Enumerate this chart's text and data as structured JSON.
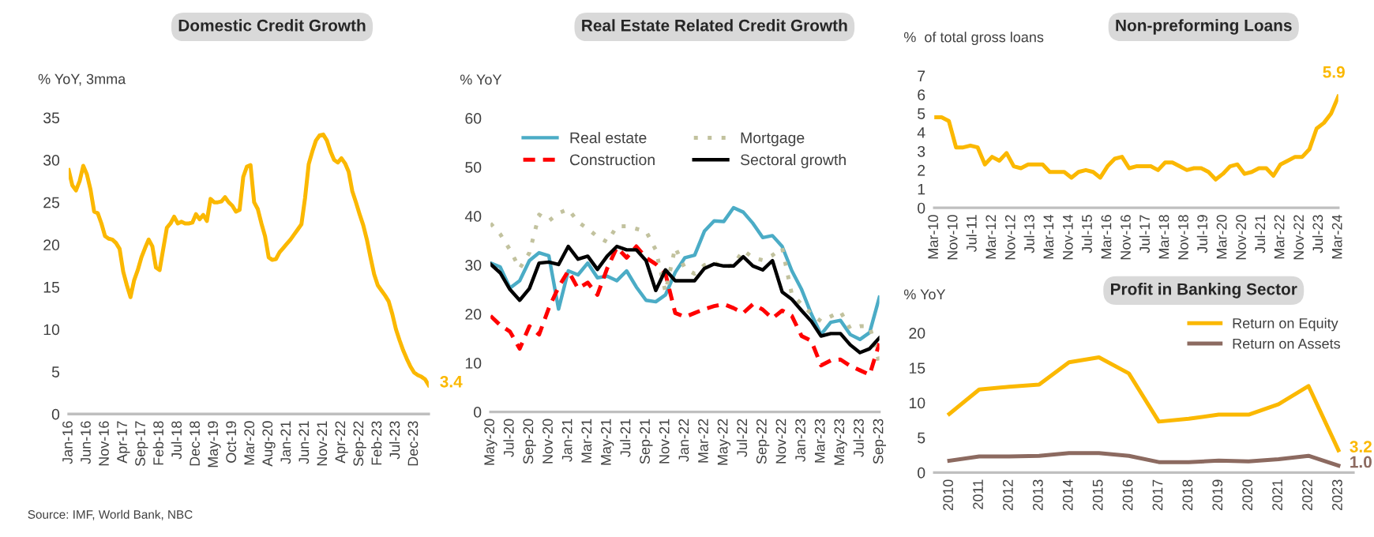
{
  "chart_data": [
    {
      "type": "line",
      "title": "Domestic Credit Growth",
      "ylabel": "% YoY, 3mma",
      "annotations": [
        "Source: IMF, World Bank, NBC"
      ],
      "categories": [
        "Jan-16",
        null,
        null,
        null,
        null,
        "Jun-16",
        null,
        null,
        null,
        null,
        "Nov-16",
        null,
        null,
        null,
        null,
        "Apr-17",
        null,
        null,
        null,
        null,
        "Sep-17",
        null,
        null,
        null,
        null,
        "Feb-18",
        null,
        null,
        null,
        null,
        "Jul-18",
        null,
        null,
        null,
        null,
        "Dec-18",
        null,
        null,
        null,
        null,
        "May-19",
        null,
        null,
        null,
        null,
        "Oct-19",
        null,
        null,
        null,
        null,
        "Mar-20",
        null,
        null,
        null,
        null,
        "Aug-20",
        null,
        null,
        null,
        null,
        "Jan-21",
        null,
        null,
        null,
        null,
        "Jun-21",
        null,
        null,
        null,
        null,
        "Nov-21",
        null,
        null,
        null,
        null,
        "Apr-22",
        null,
        null,
        null,
        null,
        "Sep-22",
        null,
        null,
        null,
        null,
        "Feb-23",
        null,
        null,
        null,
        null,
        "Jul-23",
        null,
        null,
        null,
        null,
        "Dec-23",
        null,
        null,
        null,
        null
      ],
      "series": [
        {
          "color": "#fbb800",
          "values": [
            28.8,
            27,
            26.4,
            27.5,
            29.3,
            28.3,
            26.5,
            23.9,
            23.7,
            22.5,
            21.0,
            20.7,
            20.6,
            20.2,
            19.5,
            16.8,
            15.2,
            13.8,
            15.8,
            17,
            18.5,
            19.6,
            20.6,
            19.8,
            17.3,
            17,
            19.5,
            22,
            22.5,
            23.3,
            22.5,
            22.7,
            22.5,
            22.5,
            22.6,
            23.6,
            23,
            23.5,
            22.8,
            25.4,
            25,
            25,
            25.1,
            25.6,
            25,
            24.6,
            23.9,
            24.1,
            28,
            29.2,
            29.4,
            25,
            24.2,
            22.5,
            21,
            18.5,
            18.2,
            18.3,
            19.1,
            19.6,
            20.1,
            20.6,
            21.2,
            21.8,
            22.4,
            25.5,
            29.5,
            31,
            32.3,
            32.9,
            33,
            32.3,
            31,
            30,
            29.7,
            30.2,
            29.6,
            28.6,
            26.3,
            25,
            23.6,
            22.3,
            20.6,
            18.5,
            16.5,
            15.2,
            14.6,
            14,
            13.3,
            11.8,
            10,
            8.7,
            7.5,
            6.5,
            5.6,
            4.9,
            4.6,
            4.4,
            4.1,
            3.4
          ],
          "value_labels": [
            null,
            null,
            null,
            null,
            null,
            null,
            null,
            null,
            null,
            null,
            null,
            null,
            null,
            null,
            null,
            null,
            null,
            null,
            null,
            null,
            null,
            null,
            null,
            null,
            null,
            null,
            null,
            null,
            null,
            null,
            null,
            null,
            null,
            null,
            null,
            null,
            null,
            null,
            null,
            null,
            null,
            null,
            null,
            null,
            null,
            null,
            null,
            null,
            null,
            null,
            null,
            null,
            null,
            null,
            null,
            null,
            null,
            null,
            null,
            null,
            null,
            null,
            null,
            null,
            null,
            null,
            null,
            null,
            null,
            null,
            null,
            null,
            null,
            null,
            null,
            null,
            null,
            null,
            null,
            null,
            null,
            null,
            null,
            null,
            null,
            null,
            null,
            null,
            null,
            null,
            null,
            null,
            null,
            null,
            null,
            null,
            null,
            null,
            null,
            "3.4"
          ]
        }
      ],
      "ylim": [
        0,
        35
      ],
      "yticks": [
        0,
        5,
        10,
        15,
        20,
        25,
        30,
        35
      ],
      "grid": false,
      "legend": false
    },
    {
      "type": "line",
      "title": "Real Estate Related Credit Growth",
      "ylabel": "% YoY",
      "categories": [
        "May-20",
        null,
        "Jul-20",
        null,
        "Sep-20",
        null,
        "Nov-20",
        null,
        "Jan-21",
        null,
        "Mar-21",
        null,
        "May-21",
        null,
        "Jul-21",
        null,
        "Sep-21",
        null,
        "Nov-21",
        null,
        "Jan-22",
        null,
        "Mar-22",
        null,
        "May-22",
        null,
        "Jul-22",
        null,
        "Sep-22",
        null,
        "Nov-22",
        null,
        "Jan-23",
        null,
        "Mar-23",
        null,
        "May-23",
        null,
        "Jul-23",
        null,
        "Sep-23"
      ],
      "series": [
        {
          "name": "Real estate",
          "color": "#4bacc6",
          "line_style": "solid",
          "values": [
            30.4,
            29.6,
            25.3,
            26.8,
            30.9,
            32.5,
            31.9,
            21,
            28.8,
            28,
            30.4,
            27.4,
            27.7,
            26.8,
            28.8,
            25.5,
            22.8,
            22.5,
            23.9,
            28.5,
            31.5,
            32,
            36.9,
            39,
            38.9,
            41.7,
            40.8,
            38.5,
            35.6,
            36,
            33.8,
            28.8,
            25,
            20,
            15.8,
            18.3,
            18.7,
            15.8,
            14.8,
            16.2,
            23.4
          ]
        },
        {
          "name": "Construction",
          "color": "#ff0000",
          "line_style": "dashed",
          "values": [
            19.6,
            17.7,
            16.4,
            12.9,
            17.5,
            15.8,
            21.2,
            25.5,
            28.8,
            25.2,
            26.4,
            23.9,
            29.3,
            33.6,
            31.5,
            33.8,
            31.5,
            30.2,
            28.2,
            20.2,
            19.4,
            20.2,
            21,
            21.6,
            22,
            21.2,
            20.2,
            22,
            20.9,
            19.1,
            20.7,
            19.6,
            15.5,
            14.5,
            9.5,
            10.5,
            10.7,
            9.4,
            8.5,
            7.6,
            14
          ]
        },
        {
          "name": "Mortgage",
          "color": "#c2c29e",
          "line_style": "dotted",
          "values": [
            38.5,
            36.3,
            33.1,
            29.3,
            32.5,
            40.3,
            39,
            40.6,
            41.4,
            38.8,
            37.4,
            35.8,
            34.7,
            37.9,
            37.9,
            37.4,
            36.9,
            33.1,
            24.5,
            33.6,
            29.3,
            28.2,
            30,
            30.5,
            29.5,
            30,
            33,
            31.5,
            31,
            32,
            33.5,
            24,
            22,
            20,
            18.5,
            19.5,
            20.5,
            17,
            17.5,
            17.5,
            10
          ]
        },
        {
          "name": "Sectoral growth",
          "color": "#000000",
          "line_style": "solid",
          "values": [
            30.2,
            28.4,
            25,
            22.8,
            25.2,
            30.4,
            30.6,
            30.1,
            33.8,
            31.2,
            31.8,
            29.1,
            31.8,
            33.8,
            33.1,
            33.1,
            30.9,
            24.8,
            29,
            26.8,
            26.8,
            26.8,
            29.3,
            30.2,
            29.8,
            29.8,
            31.7,
            29.8,
            29,
            30.9,
            24.5,
            23,
            20.7,
            18.5,
            15.5,
            16,
            16,
            13.7,
            12.1,
            12.9,
            15.1
          ]
        }
      ],
      "ylim": [
        0,
        60
      ],
      "yticks": [
        0,
        10,
        20,
        30,
        40,
        50,
        60
      ],
      "grid": false,
      "legend": "top"
    },
    {
      "type": "line",
      "title": "Non-preforming Loans",
      "ylabel": "%  of total gross loans",
      "x": [
        "2010-03",
        "2010-06",
        "2010-09",
        "2010-12",
        "2011-03",
        "2011-06",
        "2011-09",
        "2011-12",
        "2012-03",
        "2012-06",
        "2012-09",
        "2012-12",
        "2013-03",
        "2013-06",
        "2013-09",
        "2013-12",
        "2014-03",
        "2014-06",
        "2014-09",
        "2014-12",
        "2015-03",
        "2015-06",
        "2015-09",
        "2015-12",
        "2016-03",
        "2016-06",
        "2016-09",
        "2016-12",
        "2017-03",
        "2017-06",
        "2017-09",
        "2017-12",
        "2018-03",
        "2018-06",
        "2018-09",
        "2018-12",
        "2019-03",
        "2019-06",
        "2019-09",
        "2019-12",
        "2020-03",
        "2020-06",
        "2020-09",
        "2020-12",
        "2021-03",
        "2021-06",
        "2021-09",
        "2021-12",
        "2022-03",
        "2022-06",
        "2022-09",
        "2022-12",
        "2023-03",
        "2023-06",
        "2023-09",
        "2023-12",
        "2024-03"
      ],
      "series": [
        {
          "color": "#fbb800",
          "values": [
            4.8,
            4.8,
            4.6,
            3.2,
            3.2,
            3.3,
            3.2,
            2.3,
            2.7,
            2.5,
            2.9,
            2.2,
            2.1,
            2.3,
            2.3,
            2.3,
            1.9,
            1.9,
            1.9,
            1.6,
            1.9,
            2.0,
            1.9,
            1.6,
            2.2,
            2.6,
            2.7,
            2.1,
            2.2,
            2.2,
            2.2,
            2.0,
            2.4,
            2.4,
            2.2,
            2.0,
            2.1,
            2.1,
            1.9,
            1.5,
            1.8,
            2.2,
            2.3,
            1.8,
            1.9,
            2.1,
            2.1,
            1.7,
            2.3,
            2.5,
            2.7,
            2.7,
            3.1,
            4.2,
            4.5,
            5.0,
            5.9
          ]
        }
      ],
      "annotations": [
        {
          "text": "5.9",
          "x": "2024-03",
          "y": 5.9
        }
      ],
      "xlim": [
        "2010-03",
        "2024-03"
      ],
      "xticks": [
        {
          "value": "2010-03",
          "label": "Mar-10"
        },
        {
          "value": "2010-11",
          "label": "Nov-10"
        },
        {
          "value": "2011-07",
          "label": "Jul-11"
        },
        {
          "value": "2012-03",
          "label": "Mar-12"
        },
        {
          "value": "2012-11",
          "label": "Nov-12"
        },
        {
          "value": "2013-07",
          "label": "Jul-13"
        },
        {
          "value": "2014-03",
          "label": "Mar-14"
        },
        {
          "value": "2014-11",
          "label": "Nov-14"
        },
        {
          "value": "2015-07",
          "label": "Jul-15"
        },
        {
          "value": "2016-03",
          "label": "Mar-16"
        },
        {
          "value": "2016-11",
          "label": "Nov-16"
        },
        {
          "value": "2017-07",
          "label": "Jul-17"
        },
        {
          "value": "2018-03",
          "label": "Mar-18"
        },
        {
          "value": "2018-11",
          "label": "Nov-18"
        },
        {
          "value": "2019-07",
          "label": "Jul-19"
        },
        {
          "value": "2020-03",
          "label": "Mar-20"
        },
        {
          "value": "2020-11",
          "label": "Nov-20"
        },
        {
          "value": "2021-07",
          "label": "Jul-21"
        },
        {
          "value": "2022-03",
          "label": "Mar-22"
        },
        {
          "value": "2022-11",
          "label": "Nov-22"
        },
        {
          "value": "2023-07",
          "label": "Jul-23"
        },
        {
          "value": "2024-03",
          "label": "Mar-24"
        }
      ],
      "ylim": [
        0,
        7
      ],
      "yticks": [
        0,
        1,
        2,
        3,
        4,
        5,
        6,
        7
      ],
      "grid": false,
      "legend": false
    },
    {
      "type": "line",
      "title": "Profit in Banking Sector",
      "ylabel": "% YoY",
      "categories": [
        "2010",
        "2011",
        "2012",
        "2013",
        "2014",
        "2015",
        "2016",
        "2017",
        "2018",
        "2019",
        "2020",
        "2021",
        "2022",
        "2023"
      ],
      "series": [
        {
          "name": "Return on Equity",
          "color": "#fbb800",
          "values": [
            8.4,
            11.9,
            12.3,
            12.6,
            15.8,
            16.5,
            14.2,
            7.3,
            7.7,
            8.3,
            8.3,
            9.8,
            12.4,
            3.2
          ],
          "value_labels": [
            null,
            null,
            null,
            null,
            null,
            null,
            null,
            null,
            null,
            null,
            null,
            null,
            null,
            "3.2"
          ]
        },
        {
          "name": "Return on Assets",
          "color": "#8c6a60",
          "values": [
            1.7,
            2.3,
            2.3,
            2.4,
            2.8,
            2.8,
            2.4,
            1.5,
            1.5,
            1.7,
            1.6,
            1.9,
            2.4,
            1.0
          ],
          "value_labels": [
            null,
            null,
            null,
            null,
            null,
            null,
            null,
            null,
            null,
            null,
            null,
            null,
            null,
            "1.0"
          ]
        }
      ],
      "ylim": [
        0,
        20
      ],
      "yticks": [
        0,
        5,
        10,
        15,
        20
      ],
      "grid": false,
      "legend": "top right"
    }
  ]
}
